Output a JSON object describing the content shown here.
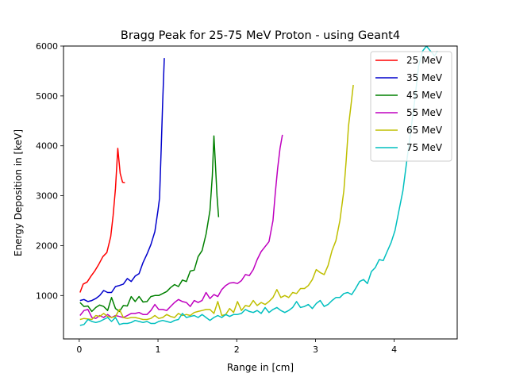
{
  "chart_data": {
    "type": "line",
    "title": "Bragg Peak for 25-75 MeV Proton - using Geant4",
    "xlabel": "Range in [cm]",
    "ylabel": "Energy Deposition in [keV]",
    "xlim": [
      -0.2,
      4.8
    ],
    "ylim": [
      130,
      6000
    ],
    "xticks": [
      0,
      1,
      2,
      3,
      4
    ],
    "xtick_labels": [
      "0",
      "1",
      "2",
      "3",
      "4"
    ],
    "yticks": [
      1000,
      2000,
      3000,
      4000,
      5000,
      6000
    ],
    "ytick_labels": [
      "1000",
      "2000",
      "3000",
      "4000",
      "5000",
      "6000"
    ],
    "grid": false,
    "legend_position": "top-right",
    "series": [
      {
        "name": "25 MeV",
        "color": "#ff0000",
        "x": [
          0.01,
          0.05,
          0.1,
          0.15,
          0.2,
          0.25,
          0.3,
          0.35,
          0.4,
          0.43,
          0.46,
          0.49,
          0.52,
          0.55,
          0.58
        ],
        "y": [
          1060,
          1230,
          1270,
          1390,
          1500,
          1630,
          1780,
          1860,
          2180,
          2600,
          3150,
          3950,
          3450,
          3270,
          3260
        ]
      },
      {
        "name": "35 MeV",
        "color": "#0000cc",
        "x": [
          0.01,
          0.06,
          0.11,
          0.16,
          0.21,
          0.26,
          0.31,
          0.36,
          0.41,
          0.46,
          0.51,
          0.56,
          0.61,
          0.66,
          0.71,
          0.76,
          0.81,
          0.86,
          0.91,
          0.96,
          1.0,
          1.02,
          1.04,
          1.06,
          1.08
        ],
        "y": [
          900,
          920,
          880,
          900,
          940,
          1000,
          1100,
          1060,
          1060,
          1180,
          1200,
          1230,
          1340,
          1280,
          1390,
          1440,
          1660,
          1830,
          2020,
          2280,
          2700,
          2950,
          3900,
          4900,
          5760
        ]
      },
      {
        "name": "45 MeV",
        "color": "#008000",
        "x": [
          0.01,
          0.06,
          0.11,
          0.16,
          0.21,
          0.26,
          0.31,
          0.36,
          0.41,
          0.46,
          0.51,
          0.56,
          0.61,
          0.66,
          0.71,
          0.76,
          0.81,
          0.86,
          0.91,
          0.96,
          1.01,
          1.06,
          1.11,
          1.16,
          1.21,
          1.26,
          1.31,
          1.36,
          1.41,
          1.46,
          1.51,
          1.56,
          1.61,
          1.66,
          1.69,
          1.71,
          1.73,
          1.75,
          1.77
        ],
        "y": [
          860,
          780,
          790,
          680,
          760,
          810,
          780,
          700,
          960,
          740,
          680,
          800,
          790,
          980,
          880,
          980,
          870,
          880,
          980,
          1000,
          1000,
          1040,
          1080,
          1160,
          1220,
          1180,
          1310,
          1280,
          1490,
          1510,
          1780,
          1900,
          2230,
          2700,
          3400,
          4200,
          3600,
          3000,
          2570
        ]
      },
      {
        "name": "55 MeV",
        "color": "#bf00bf",
        "x": [
          0.01,
          0.06,
          0.11,
          0.16,
          0.21,
          0.26,
          0.31,
          0.36,
          0.41,
          0.46,
          0.51,
          0.56,
          0.61,
          0.66,
          0.71,
          0.76,
          0.81,
          0.86,
          0.91,
          0.96,
          1.01,
          1.06,
          1.11,
          1.16,
          1.21,
          1.26,
          1.31,
          1.36,
          1.41,
          1.46,
          1.51,
          1.56,
          1.61,
          1.66,
          1.71,
          1.76,
          1.81,
          1.86,
          1.91,
          1.96,
          2.01,
          2.06,
          2.11,
          2.16,
          2.21,
          2.26,
          2.31,
          2.36,
          2.41,
          2.46,
          2.49,
          2.52,
          2.55,
          2.58
        ],
        "y": [
          600,
          700,
          720,
          560,
          540,
          600,
          560,
          620,
          560,
          600,
          580,
          560,
          600,
          640,
          640,
          660,
          620,
          620,
          700,
          820,
          720,
          720,
          700,
          780,
          860,
          920,
          880,
          860,
          780,
          900,
          860,
          900,
          1060,
          940,
          1020,
          980,
          1120,
          1200,
          1250,
          1260,
          1240,
          1300,
          1420,
          1400,
          1520,
          1720,
          1880,
          1980,
          2080,
          2500,
          3050,
          3550,
          3950,
          4220
        ]
      },
      {
        "name": "65 MeV",
        "color": "#bfbf00",
        "x": [
          0.01,
          0.06,
          0.11,
          0.16,
          0.21,
          0.26,
          0.31,
          0.36,
          0.41,
          0.46,
          0.51,
          0.56,
          0.61,
          0.66,
          0.71,
          0.76,
          0.81,
          0.86,
          0.91,
          0.96,
          1.01,
          1.06,
          1.11,
          1.16,
          1.21,
          1.26,
          1.31,
          1.36,
          1.41,
          1.46,
          1.51,
          1.56,
          1.61,
          1.66,
          1.71,
          1.76,
          1.81,
          1.86,
          1.91,
          1.96,
          2.01,
          2.06,
          2.11,
          2.16,
          2.21,
          2.26,
          2.31,
          2.36,
          2.41,
          2.46,
          2.51,
          2.56,
          2.61,
          2.66,
          2.71,
          2.76,
          2.81,
          2.86,
          2.91,
          2.96,
          3.01,
          3.06,
          3.11,
          3.16,
          3.21,
          3.26,
          3.31,
          3.36,
          3.39,
          3.42,
          3.45,
          3.48
        ],
        "y": [
          520,
          540,
          530,
          520,
          600,
          580,
          640,
          580,
          560,
          580,
          720,
          560,
          540,
          560,
          560,
          540,
          520,
          520,
          540,
          600,
          540,
          560,
          620,
          580,
          560,
          640,
          600,
          620,
          600,
          660,
          680,
          700,
          720,
          720,
          640,
          880,
          600,
          620,
          740,
          660,
          880,
          700,
          800,
          780,
          900,
          800,
          860,
          820,
          880,
          960,
          1120,
          960,
          1000,
          960,
          1060,
          1040,
          1140,
          1140,
          1200,
          1320,
          1520,
          1460,
          1420,
          1600,
          1900,
          2100,
          2500,
          3100,
          3700,
          4400,
          4800,
          5220
        ]
      },
      {
        "name": "75 MeV",
        "color": "#00bfbf",
        "x": [
          0.01,
          0.06,
          0.11,
          0.16,
          0.21,
          0.26,
          0.31,
          0.36,
          0.41,
          0.46,
          0.51,
          0.56,
          0.61,
          0.66,
          0.71,
          0.76,
          0.81,
          0.86,
          0.91,
          0.96,
          1.01,
          1.06,
          1.11,
          1.16,
          1.21,
          1.26,
          1.31,
          1.36,
          1.41,
          1.46,
          1.51,
          1.56,
          1.61,
          1.66,
          1.71,
          1.76,
          1.81,
          1.86,
          1.91,
          1.96,
          2.01,
          2.06,
          2.11,
          2.16,
          2.21,
          2.26,
          2.31,
          2.36,
          2.41,
          2.46,
          2.51,
          2.56,
          2.61,
          2.66,
          2.71,
          2.76,
          2.81,
          2.86,
          2.91,
          2.96,
          3.01,
          3.06,
          3.11,
          3.16,
          3.21,
          3.26,
          3.31,
          3.36,
          3.41,
          3.46,
          3.51,
          3.56,
          3.61,
          3.66,
          3.71,
          3.76,
          3.81,
          3.86,
          3.91,
          3.96,
          4.01,
          4.06,
          4.11,
          4.16,
          4.21,
          4.26,
          4.31,
          4.36,
          4.41,
          4.46,
          4.49,
          4.51,
          4.53,
          4.55
        ],
        "y": [
          400,
          420,
          520,
          480,
          460,
          480,
          520,
          560,
          480,
          560,
          420,
          440,
          440,
          460,
          500,
          480,
          460,
          480,
          440,
          440,
          480,
          500,
          480,
          460,
          500,
          520,
          640,
          560,
          580,
          600,
          560,
          620,
          560,
          500,
          560,
          600,
          560,
          620,
          580,
          620,
          620,
          640,
          720,
          680,
          660,
          700,
          640,
          760,
          660,
          720,
          760,
          700,
          660,
          700,
          760,
          880,
          760,
          780,
          820,
          740,
          840,
          900,
          780,
          820,
          900,
          960,
          960,
          1040,
          1060,
          1020,
          1140,
          1280,
          1320,
          1240,
          1480,
          1560,
          1720,
          1700,
          1880,
          2060,
          2300,
          2700,
          3100,
          3700,
          4300,
          4900,
          5600,
          5900,
          6000,
          5900,
          5850,
          5800,
          5850,
          5900
        ]
      }
    ]
  }
}
